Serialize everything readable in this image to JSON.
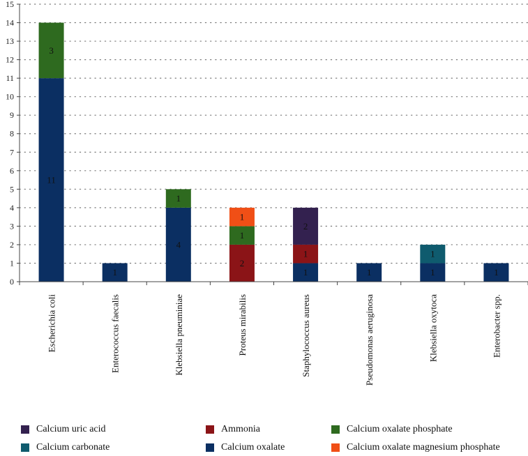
{
  "chart_data": {
    "type": "bar",
    "stacked": true,
    "title": "",
    "xlabel": "",
    "ylabel": "",
    "ylim": [
      0,
      15
    ],
    "yticks": [
      0,
      1,
      2,
      3,
      4,
      5,
      6,
      7,
      8,
      9,
      10,
      11,
      12,
      13,
      14,
      15
    ],
    "grid": "horizontal-dotted",
    "legend_position": "bottom",
    "categories": [
      "Escherichia coli",
      "Enterococcus faecalis",
      "Klebsiella pneuminiae",
      "Proteus mirabilis",
      "Staphylococcus aureus",
      "Pseudomonas aeruginosa",
      "Klebsiella oxytoca",
      "Enterobacter spp."
    ],
    "series": [
      {
        "name": "Calcium oxalate",
        "color": "#0b2f62",
        "values": [
          11,
          1,
          4,
          0,
          1,
          1,
          1,
          1
        ]
      },
      {
        "name": "Ammonia",
        "color": "#8b1417",
        "values": [
          0,
          0,
          0,
          2,
          1,
          0,
          0,
          0
        ]
      },
      {
        "name": "Calcium oxalate phosphate",
        "color": "#2e6a1f",
        "values": [
          3,
          0,
          1,
          1,
          0,
          0,
          0,
          0
        ]
      },
      {
        "name": "Calcium oxalate magnesium phosphate",
        "color": "#f04f16",
        "values": [
          0,
          0,
          0,
          1,
          0,
          0,
          0,
          0
        ]
      },
      {
        "name": "Calcium uric acid",
        "color": "#33214f",
        "values": [
          0,
          0,
          0,
          0,
          2,
          0,
          0,
          0
        ]
      },
      {
        "name": "Calcium carbonate",
        "color": "#0f5b6e",
        "values": [
          0,
          0,
          0,
          0,
          0,
          0,
          1,
          0
        ]
      }
    ],
    "legend": [
      {
        "name": "Calcium uric acid",
        "color": "#33214f"
      },
      {
        "name": "Ammonia",
        "color": "#8b1417"
      },
      {
        "name": "Calcium oxalate phosphate",
        "color": "#2e6a1f"
      },
      {
        "name": "Calcium carbonate",
        "color": "#0f5b6e"
      },
      {
        "name": "Calcium oxalate",
        "color": "#0b2f62"
      },
      {
        "name": "Calcium oxalate magnesium phosphate",
        "color": "#f04f16"
      }
    ]
  }
}
